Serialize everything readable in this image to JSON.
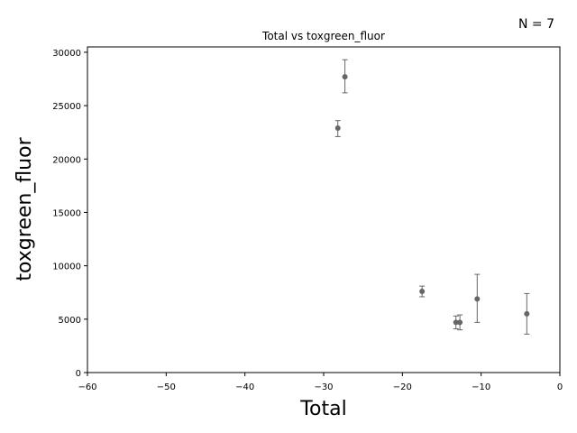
{
  "chart_data": {
    "type": "scatter",
    "title": "Total vs toxgreen_fluor",
    "xlabel": "Total",
    "ylabel": "toxgreen_fluor",
    "annotation": "N = 7",
    "xlim": [
      -60,
      0
    ],
    "ylim": [
      0,
      30500
    ],
    "xticks": [
      -60,
      -50,
      -40,
      -30,
      -20,
      -10,
      0
    ],
    "yticks": [
      0,
      5000,
      10000,
      15000,
      20000,
      25000,
      30000
    ],
    "grid": false,
    "colors": {
      "point": "#666666",
      "errorbar": "#666666",
      "axis": "#000000"
    },
    "points": [
      {
        "x": -28.2,
        "y": 22900,
        "yerr_low": 22100,
        "yerr_high": 23600
      },
      {
        "x": -27.3,
        "y": 27700,
        "yerr_low": 26200,
        "yerr_high": 29300
      },
      {
        "x": -17.5,
        "y": 7600,
        "yerr_low": 7100,
        "yerr_high": 8100
      },
      {
        "x": -13.2,
        "y": 4700,
        "yerr_low": 4100,
        "yerr_high": 5300
      },
      {
        "x": -12.7,
        "y": 4700,
        "yerr_low": 4000,
        "yerr_high": 5400
      },
      {
        "x": -10.5,
        "y": 6900,
        "yerr_low": 4700,
        "yerr_high": 9200
      },
      {
        "x": -4.2,
        "y": 5500,
        "yerr_low": 3600,
        "yerr_high": 7400
      }
    ]
  }
}
